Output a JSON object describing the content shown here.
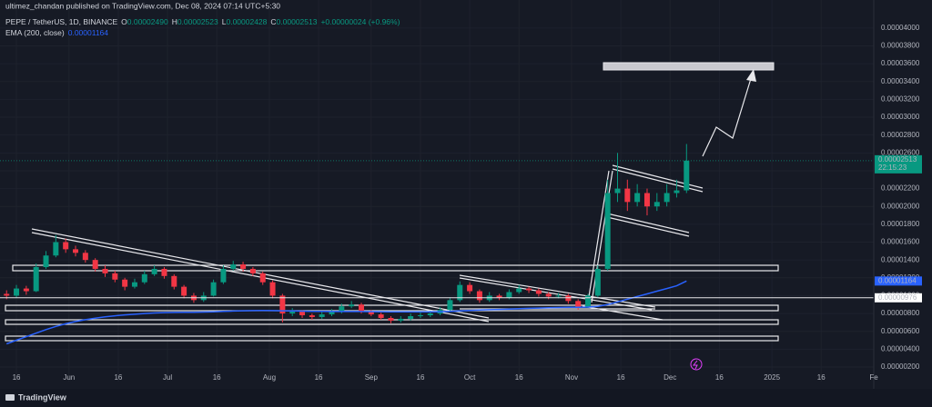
{
  "header": "ultimez_chandan published on TradingView.com, Dec 08, 2024 07:14 UTC+5:30",
  "chart_data": {
    "type": "candlestick",
    "title": "PEPE / TetherUS, 1D, BINANCE",
    "ohlc_legend": [
      {
        "key": "O",
        "value": "0.00002490"
      },
      {
        "key": "H",
        "value": "0.00002523"
      },
      {
        "key": "L",
        "value": "0.00002428"
      },
      {
        "key": "C",
        "value": "0.00002513"
      }
    ],
    "change": "+0.00000024 (+0.96%)",
    "x": [
      "2024-05-13",
      "2024-05-16",
      "2024-05-19",
      "2024-05-22",
      "2024-05-25",
      "2024-05-28",
      "2024-05-31",
      "2024-06-03",
      "2024-06-06",
      "2024-06-09",
      "2024-06-12",
      "2024-06-15",
      "2024-06-18",
      "2024-06-21",
      "2024-06-24",
      "2024-06-27",
      "2024-06-30",
      "2024-07-03",
      "2024-07-06",
      "2024-07-09",
      "2024-07-12",
      "2024-07-15",
      "2024-07-18",
      "2024-07-21",
      "2024-07-24",
      "2024-07-27",
      "2024-07-30",
      "2024-08-02",
      "2024-08-05",
      "2024-08-08",
      "2024-08-11",
      "2024-08-14",
      "2024-08-17",
      "2024-08-20",
      "2024-08-23",
      "2024-08-26",
      "2024-08-29",
      "2024-09-01",
      "2024-09-04",
      "2024-09-07",
      "2024-09-10",
      "2024-09-13",
      "2024-09-16",
      "2024-09-19",
      "2024-09-22",
      "2024-09-25",
      "2024-09-28",
      "2024-10-01",
      "2024-10-04",
      "2024-10-07",
      "2024-10-10",
      "2024-10-13",
      "2024-10-16",
      "2024-10-19",
      "2024-10-22",
      "2024-10-25",
      "2024-10-28",
      "2024-10-31",
      "2024-11-03",
      "2024-11-06",
      "2024-11-09",
      "2024-11-12",
      "2024-11-15",
      "2024-11-18",
      "2024-11-21",
      "2024-11-24",
      "2024-11-27",
      "2024-11-30",
      "2024-12-03",
      "2024-12-06"
    ],
    "open": [
      1.02e-05,
      1e-05,
      1.08e-05,
      1.05e-05,
      1.32e-05,
      1.45e-05,
      1.6e-05,
      1.52e-05,
      1.48e-05,
      1.4e-05,
      1.3e-05,
      1.25e-05,
      1.18e-05,
      1.1e-05,
      1.15e-05,
      1.24e-05,
      1.3e-05,
      1.22e-05,
      1.1e-05,
      1e-05,
      9.5e-06,
      1e-05,
      1.15e-05,
      1.3e-05,
      1.35e-05,
      1.3e-05,
      1.25e-05,
      1.15e-05,
      1e-05,
      8e-06,
      8.2e-06,
      7.8e-06,
      7.6e-06,
      7.9e-06,
      8.2e-06,
      8.8e-06,
      9e-06,
      8.2e-06,
      7.9e-06,
      7.5e-06,
      7.2e-06,
      7.4e-06,
      7.7e-06,
      7.8e-06,
      8e-06,
      8.4e-06,
      9.5e-06,
      1.12e-05,
      1.05e-05,
      9.5e-06,
      1e-05,
      9.8e-06,
      1.04e-05,
      1.08e-05,
      1.06e-05,
      1.02e-05,
      9.9e-06,
      1e-05,
      9.4e-06,
      8.7e-06,
      1e-05,
      1.3e-05,
      2.15e-05,
      2.2e-05,
      2.05e-05,
      2.15e-05,
      2e-05,
      2.05e-05,
      2.15e-05,
      2.18e-05
    ],
    "high": [
      1.06e-05,
      1.12e-05,
      1.11e-05,
      1.36e-05,
      1.5e-05,
      1.68e-05,
      1.64e-05,
      1.56e-05,
      1.51e-05,
      1.42e-05,
      1.34e-05,
      1.28e-05,
      1.2e-05,
      1.19e-05,
      1.28e-05,
      1.34e-05,
      1.32e-05,
      1.24e-05,
      1.12e-05,
      1.03e-05,
      1.04e-05,
      1.18e-05,
      1.34e-05,
      1.39e-05,
      1.38e-05,
      1.32e-05,
      1.27e-05,
      1.17e-05,
      1.02e-05,
      8.6e-06,
      8.4e-06,
      8e-06,
      8.2e-06,
      8.5e-06,
      9.1e-06,
      9.4e-06,
      9.2e-06,
      8.4e-06,
      8.1e-06,
      7.7e-06,
      7.7e-06,
      8e-06,
      8.1e-06,
      8.3e-06,
      8.7e-06,
      9.8e-06,
      1.16e-05,
      1.15e-05,
      1.07e-05,
      1.04e-05,
      1.02e-05,
      1.07e-05,
      1.12e-05,
      1.1e-05,
      1.08e-05,
      1.04e-05,
      1.03e-05,
      1.02e-05,
      9.6e-06,
      1.02e-05,
      1.34e-05,
      2.3e-05,
      2.6e-05,
      2.3e-05,
      2.25e-05,
      2.2e-05,
      2.15e-05,
      2.25e-05,
      2.3e-05,
      2.7e-05
    ],
    "low": [
      9.6e-06,
      9.8e-06,
      1.01e-05,
      1.04e-05,
      1.3e-05,
      1.43e-05,
      1.48e-05,
      1.44e-05,
      1.37e-05,
      1.27e-05,
      1.21e-05,
      1.15e-05,
      1.06e-05,
      1.08e-05,
      1.13e-05,
      1.22e-05,
      1.19e-05,
      1.07e-05,
      9.7e-06,
      9.2e-06,
      9.3e-06,
      9.9e-06,
      1.13e-05,
      1.28e-05,
      1.27e-05,
      1.22e-05,
      1.12e-05,
      9.7e-06,
      7e-06,
      7.7e-06,
      7.5e-06,
      7.3e-06,
      7.4e-06,
      7.7e-06,
      8e-06,
      8.6e-06,
      8e-06,
      7.7e-06,
      7.3e-06,
      6.9e-06,
      7e-06,
      7.2e-06,
      7.5e-06,
      7.6e-06,
      7.8e-06,
      8.2e-06,
      9.3e-06,
      1.02e-05,
      9.2e-06,
      9.3e-06,
      9.5e-06,
      9.6e-06,
      1.02e-05,
      1.03e-05,
      9.9e-06,
      9.6e-06,
      9.7e-06,
      9.1e-06,
      8.4e-06,
      8.6e-06,
      9.8e-06,
      1.28e-05,
      2.05e-05,
      1.95e-05,
      2e-05,
      1.9e-05,
      1.95e-05,
      2e-05,
      2.1e-05,
      2.15e-05
    ],
    "close": [
      1e-05,
      1.08e-05,
      1.05e-05,
      1.32e-05,
      1.45e-05,
      1.6e-05,
      1.52e-05,
      1.48e-05,
      1.4e-05,
      1.3e-05,
      1.25e-05,
      1.18e-05,
      1.1e-05,
      1.15e-05,
      1.24e-05,
      1.3e-05,
      1.22e-05,
      1.1e-05,
      1e-05,
      9.5e-06,
      1e-05,
      1.15e-05,
      1.3e-05,
      1.35e-05,
      1.3e-05,
      1.25e-05,
      1.15e-05,
      1e-05,
      8e-06,
      8.2e-06,
      7.8e-06,
      7.6e-06,
      7.9e-06,
      8.2e-06,
      8.8e-06,
      9e-06,
      8.2e-06,
      7.9e-06,
      7.5e-06,
      7.2e-06,
      7.4e-06,
      7.7e-06,
      7.8e-06,
      8e-06,
      8.4e-06,
      9.5e-06,
      1.12e-05,
      1.05e-05,
      9.5e-06,
      1e-05,
      9.8e-06,
      1.04e-05,
      1.08e-05,
      1.06e-05,
      1.02e-05,
      9.9e-06,
      1e-05,
      9.4e-06,
      8.7e-06,
      1e-05,
      1.3e-05,
      2.15e-05,
      2.2e-05,
      2.05e-05,
      2.15e-05,
      2e-05,
      2.05e-05,
      2.15e-05,
      2.18e-05,
      2.513e-05
    ],
    "up_color": "#089981",
    "down_color": "#f23645",
    "ema": {
      "name": "EMA (200, close)",
      "color": "#2962ff",
      "values": [
        4.6e-06,
        5e-06,
        5.4e-06,
        5.8e-06,
        6.2e-06,
        6.55e-06,
        6.85e-06,
        7.1e-06,
        7.3e-06,
        7.48e-06,
        7.62e-06,
        7.74e-06,
        7.84e-06,
        7.92e-06,
        8e-06,
        8.06e-06,
        8.1e-06,
        8.12e-06,
        8.13e-06,
        8.14e-06,
        8.16e-06,
        8.19e-06,
        8.23e-06,
        8.27e-06,
        8.3e-06,
        8.32e-06,
        8.33e-06,
        8.32e-06,
        8.3e-06,
        8.28e-06,
        8.26e-06,
        8.24e-06,
        8.23e-06,
        8.22e-06,
        8.22e-06,
        8.22e-06,
        8.22e-06,
        8.21e-06,
        8.2e-06,
        8.19e-06,
        8.18e-06,
        8.18e-06,
        8.18e-06,
        8.19e-06,
        8.2e-06,
        8.23e-06,
        8.29e-06,
        8.34e-06,
        8.38e-06,
        8.42e-06,
        8.46e-06,
        8.5e-06,
        8.54e-06,
        8.58e-06,
        8.61e-06,
        8.64e-06,
        8.67e-06,
        8.69e-06,
        8.7e-06,
        8.72e-06,
        8.8e-06,
        9e-06,
        9.3e-06,
        9.6e-06,
        9.9e-06,
        1.02e-05,
        1.05e-05,
        1.08e-05,
        1.11e-05,
        1.164e-05
      ],
      "last": {
        "value": 1.164e-05,
        "label": "0.00001164"
      }
    },
    "last_price": {
      "value": 2.513e-05,
      "label": "0.00002513",
      "countdown": "22:15:23"
    },
    "level": {
      "value": 9.76e-06,
      "label": "0.00000976"
    },
    "xlim": [
      "2024-05-11",
      "2025-02-01"
    ],
    "xticks": [
      {
        "value": "2024-05-16",
        "label": "16"
      },
      {
        "value": "2024-06-01",
        "label": "Jun"
      },
      {
        "value": "2024-06-16",
        "label": "16"
      },
      {
        "value": "2024-07-01",
        "label": "Jul"
      },
      {
        "value": "2024-07-16",
        "label": "16"
      },
      {
        "value": "2024-08-01",
        "label": "Aug"
      },
      {
        "value": "2024-08-16",
        "label": "16"
      },
      {
        "value": "2024-09-01",
        "label": "Sep"
      },
      {
        "value": "2024-09-16",
        "label": "16"
      },
      {
        "value": "2024-10-01",
        "label": "Oct"
      },
      {
        "value": "2024-10-16",
        "label": "16"
      },
      {
        "value": "2024-11-01",
        "label": "Nov"
      },
      {
        "value": "2024-11-16",
        "label": "16"
      },
      {
        "value": "2024-12-01",
        "label": "Dec"
      },
      {
        "value": "2024-12-16",
        "label": "16"
      },
      {
        "value": "2025-01-01",
        "label": "2025"
      },
      {
        "value": "2025-01-16",
        "label": "16"
      },
      {
        "value": "2025-02-01",
        "label": "Fe"
      }
    ],
    "ylim": [
      3.7e-07,
      4.09e-05
    ],
    "yticks": [
      {
        "value": 4e-05,
        "label": "0.00004000"
      },
      {
        "value": 3.8e-05,
        "label": "0.00003800"
      },
      {
        "value": 3.6e-05,
        "label": "0.00003600"
      },
      {
        "value": 3.4e-05,
        "label": "0.00003400"
      },
      {
        "value": 3.2e-05,
        "label": "0.00003200"
      },
      {
        "value": 3e-05,
        "label": "0.00003000"
      },
      {
        "value": 2.8e-05,
        "label": "0.00002800"
      },
      {
        "value": 2.6e-05,
        "label": "0.00002600"
      },
      {
        "value": 2.4e-05,
        "label": "0.00002400"
      },
      {
        "value": 2.2e-05,
        "label": "0.00002200"
      },
      {
        "value": 2e-05,
        "label": "0.00002000"
      },
      {
        "value": 1.8e-05,
        "label": "0.00001800"
      },
      {
        "value": 1.6e-05,
        "label": "0.00001600"
      },
      {
        "value": 1.4e-05,
        "label": "0.00001400"
      },
      {
        "value": 1.2e-05,
        "label": "0.00001200"
      },
      {
        "value": 1e-05,
        "label": "0.00001000"
      },
      {
        "value": 8e-06,
        "label": "0.00000800"
      },
      {
        "value": 6e-06,
        "label": "0.00000600"
      },
      {
        "value": 4e-06,
        "label": "0.00000400"
      },
      {
        "value": 2e-06,
        "label": "0.00000200"
      }
    ],
    "grid": true
  },
  "footer": "TradingView"
}
